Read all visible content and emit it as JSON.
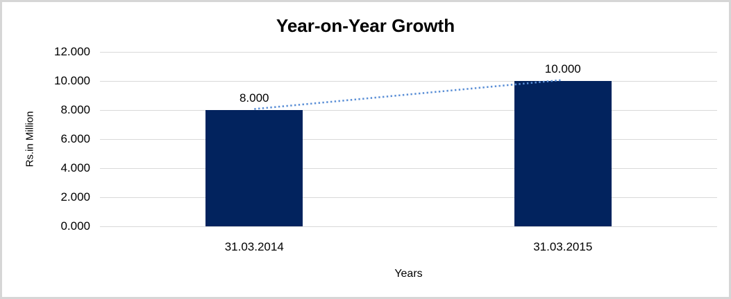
{
  "frame": {
    "background_color": "#ffffff",
    "border_color": "#d6d6d6"
  },
  "chart_data": {
    "type": "bar",
    "title": "Year-on-Year Growth",
    "xlabel": "Years",
    "ylabel": "Rs.in Million",
    "categories": [
      "31.03.2014",
      "31.03.2015"
    ],
    "values": [
      8,
      10
    ],
    "value_labels": [
      "8.000",
      "10.000"
    ],
    "ytick_labels": [
      "12.000",
      "10.000",
      "8.000",
      "6.000",
      "4.000",
      "2.000",
      "0.000"
    ],
    "ytick_values": [
      12,
      10,
      8,
      6,
      4,
      2,
      0
    ],
    "ylim": [
      0,
      12
    ],
    "grid": "horizontal",
    "legend": "none",
    "bar_color": "#02235e",
    "gridline_color": "#d9d9d9",
    "text_color": "#000000",
    "trendline": {
      "type": "linear",
      "style": "dotted",
      "color": "#5b8fd6",
      "from_value": 8,
      "to_value": 10
    }
  }
}
